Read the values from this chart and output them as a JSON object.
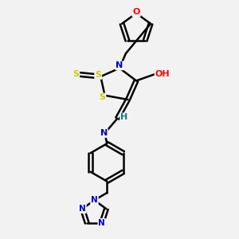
{
  "background_color": "#f2f2f2",
  "atom_colors": {
    "C": "#000000",
    "N": "#0000cc",
    "O": "#ff0000",
    "S": "#cccc00",
    "H": "#008080"
  },
  "bond_color": "#000000",
  "bond_width": 1.8,
  "fig_bg": "#f2f2f2"
}
